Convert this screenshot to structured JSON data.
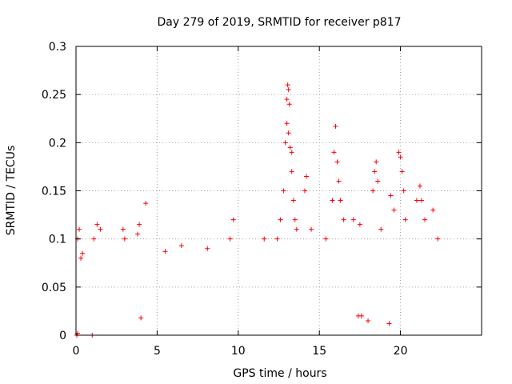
{
  "chart_data": {
    "type": "scatter",
    "title": "Day 279 of 2019, SRMTID for receiver p817",
    "xlabel": "GPS time / hours",
    "ylabel": "SRMTID / TECUs",
    "xlim": [
      0,
      25
    ],
    "ylim": [
      0,
      0.3
    ],
    "xticks": [
      0,
      5,
      10,
      15,
      20
    ],
    "xtick_labels": [
      "0",
      "5",
      "10",
      "15",
      "20"
    ],
    "yticks": [
      0,
      0.05,
      0.1,
      0.15,
      0.2,
      0.25,
      0.3
    ],
    "ytick_labels": [
      "0",
      "0.05",
      "0.1",
      "0.15",
      "0.2",
      "0.25",
      "0.3"
    ],
    "grid": true,
    "marker": "+",
    "color": "#ff0000",
    "series": [
      {
        "name": "SRMTID",
        "points": [
          [
            0.05,
            0.0
          ],
          [
            0.1,
            0.002
          ],
          [
            1.0,
            0.0
          ],
          [
            0.1,
            0.1
          ],
          [
            0.2,
            0.11
          ],
          [
            0.3,
            0.08
          ],
          [
            0.4,
            0.085
          ],
          [
            1.1,
            0.1
          ],
          [
            1.3,
            0.115
          ],
          [
            1.5,
            0.11
          ],
          [
            2.9,
            0.11
          ],
          [
            3.0,
            0.1
          ],
          [
            3.8,
            0.105
          ],
          [
            3.9,
            0.115
          ],
          [
            4.3,
            0.137
          ],
          [
            5.5,
            0.087
          ],
          [
            6.5,
            0.093
          ],
          [
            8.1,
            0.09
          ],
          [
            9.5,
            0.1
          ],
          [
            9.7,
            0.12
          ],
          [
            11.6,
            0.1
          ],
          [
            12.4,
            0.1
          ],
          [
            12.6,
            0.12
          ],
          [
            12.8,
            0.15
          ],
          [
            12.9,
            0.2
          ],
          [
            13.0,
            0.245
          ],
          [
            13.05,
            0.26
          ],
          [
            13.1,
            0.255
          ],
          [
            13.15,
            0.24
          ],
          [
            13.0,
            0.22
          ],
          [
            13.1,
            0.21
          ],
          [
            13.2,
            0.195
          ],
          [
            13.3,
            0.19
          ],
          [
            13.3,
            0.17
          ],
          [
            13.4,
            0.14
          ],
          [
            13.5,
            0.12
          ],
          [
            13.6,
            0.11
          ],
          [
            14.1,
            0.15
          ],
          [
            14.2,
            0.165
          ],
          [
            14.5,
            0.11
          ],
          [
            15.4,
            0.1
          ],
          [
            15.8,
            0.14
          ],
          [
            15.9,
            0.19
          ],
          [
            16.0,
            0.217
          ],
          [
            16.1,
            0.18
          ],
          [
            16.2,
            0.16
          ],
          [
            16.3,
            0.14
          ],
          [
            16.5,
            0.12
          ],
          [
            17.1,
            0.12
          ],
          [
            17.5,
            0.115
          ],
          [
            18.3,
            0.15
          ],
          [
            18.4,
            0.17
          ],
          [
            18.5,
            0.18
          ],
          [
            18.6,
            0.16
          ],
          [
            18.8,
            0.11
          ],
          [
            19.4,
            0.145
          ],
          [
            19.6,
            0.13
          ],
          [
            19.9,
            0.19
          ],
          [
            20.0,
            0.185
          ],
          [
            20.1,
            0.17
          ],
          [
            20.2,
            0.15
          ],
          [
            20.3,
            0.12
          ],
          [
            21.0,
            0.14
          ],
          [
            21.2,
            0.155
          ],
          [
            21.3,
            0.14
          ],
          [
            21.5,
            0.12
          ],
          [
            22.0,
            0.13
          ],
          [
            22.3,
            0.1
          ],
          [
            17.6,
            0.02
          ],
          [
            18.0,
            0.015
          ],
          [
            19.3,
            0.012
          ],
          [
            17.4,
            0.02
          ],
          [
            4.0,
            0.018
          ]
        ]
      }
    ]
  }
}
